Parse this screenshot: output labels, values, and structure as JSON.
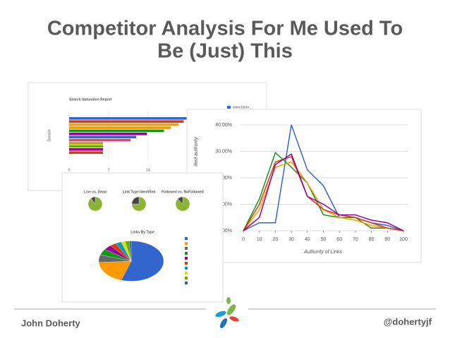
{
  "title_lines": [
    "Competitor Analysis For Me Used To",
    "Be (Just) This"
  ],
  "footer": {
    "author": "John Doherty",
    "handle": "@dohertyjf"
  },
  "bar_screenshot": {
    "title": "Search Saturation Report",
    "y_label": "Domain",
    "legend": "www.faran...",
    "xlim": [
      0,
      21
    ],
    "xticks": [
      0,
      7,
      14
    ],
    "values": [
      22,
      20.3,
      19.4,
      18,
      16.8,
      13.8,
      11.9,
      10.9,
      6,
      6,
      6,
      6
    ],
    "colors": [
      "#3366cc",
      "#dc3912",
      "#ff9900",
      "#e5a000",
      "#109618",
      "#990099",
      "#3366cc",
      "#dd4477",
      "#aaaa11",
      "#66aa00",
      "#990099",
      "#dc3912"
    ]
  },
  "line_screenshot": {
    "y_label": "ified authority",
    "x_label": "Authority of Links",
    "xlim": [
      0,
      100
    ],
    "ylim": [
      0,
      42
    ],
    "xticks": [
      0,
      10,
      20,
      30,
      40,
      50,
      60,
      70,
      80,
      90,
      100
    ],
    "yticks": [
      {
        "value": 0,
        "label": "0.00%"
      },
      {
        "value": 10,
        "label": "10.00%"
      },
      {
        "value": 20,
        "label": "20.00%"
      },
      {
        "value": 30,
        "label": "30.00%"
      },
      {
        "value": 40,
        "label": "40.00%"
      }
    ],
    "x": [
      0,
      10,
      20,
      30,
      40,
      50,
      60,
      70,
      80,
      90,
      100
    ],
    "series": [
      {
        "color": "#3366cc",
        "values": [
          0,
          3,
          3,
          40,
          23,
          17,
          5,
          5,
          3,
          2,
          0
        ]
      },
      {
        "color": "#109618",
        "values": [
          0,
          12,
          29.5,
          24,
          18,
          6,
          5,
          5,
          1,
          1,
          0
        ]
      },
      {
        "color": "#ff9900",
        "values": [
          0,
          8,
          24,
          26,
          18,
          8,
          5,
          4,
          2,
          1,
          0
        ]
      },
      {
        "color": "#dc3912",
        "values": [
          0,
          10,
          26,
          28,
          13,
          8,
          6,
          5,
          3,
          1,
          0
        ]
      },
      {
        "color": "#990099",
        "values": [
          0,
          5,
          25,
          29,
          13,
          10,
          6,
          6,
          4,
          3,
          0
        ]
      }
    ]
  },
  "pie_screenshot": {
    "gauges": [
      {
        "title": "Live vs. Dead",
        "values": [
          90,
          10
        ]
      },
      {
        "title": "Link Type Identified",
        "values": [
          75,
          25
        ]
      },
      {
        "title": "Followed vs. NoFollowed",
        "values": [
          88,
          12
        ]
      }
    ],
    "title": "Links By Type",
    "values": [
      55,
      19,
      6,
      5,
      4,
      3,
      3,
      2,
      2,
      1
    ],
    "colors": [
      "#3366cc",
      "#ff9900",
      "#666666",
      "#109618",
      "#990099",
      "#dc3912",
      "#0099c6",
      "#dddd00",
      "#66aa00",
      "#316395"
    ]
  }
}
